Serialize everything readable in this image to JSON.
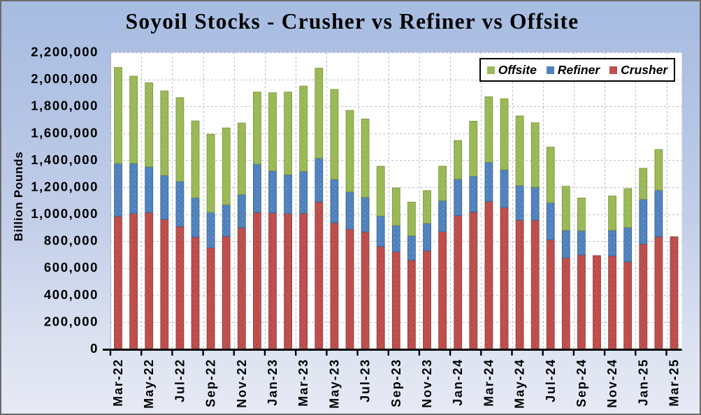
{
  "title": "Soyoil Stocks - Crusher vs Refiner vs Offsite",
  "y_axis_title": "Billion Pounds",
  "legend": {
    "position": "top-right-inside",
    "items": [
      {
        "label": "Offsite",
        "color": "#9bbb59"
      },
      {
        "label": "Refiner",
        "color": "#4f81bd"
      },
      {
        "label": "Crusher",
        "color": "#c0504d"
      }
    ]
  },
  "colors": {
    "offsite": "#9bbb59",
    "offsite_border": "#77933c",
    "refiner": "#4f81bd",
    "refiner_border": "#36608f",
    "crusher": "#c0504d",
    "crusher_border": "#903d3a",
    "background_top": "#a6bce1",
    "background_bottom": "#e7eaf5",
    "plot_background": "#ffffff",
    "gridline": "#b9bdcd",
    "x_axis_line": "#000000",
    "y_axis_line": "#aeb2c2",
    "outer_border": "#6b6b6b"
  },
  "chart_data": {
    "type": "bar",
    "stacked": true,
    "title": "Soyoil Stocks - Crusher vs Refiner vs Offsite",
    "xlabel": "",
    "ylabel": "Billion Pounds",
    "ylim": [
      0,
      2200000
    ],
    "y_tick_interval": 200000,
    "grid": "dashed",
    "legend_position": "top-right-inside",
    "y_tick_labels": [
      "0",
      "200,000",
      "400,000",
      "600,000",
      "800,000",
      "1,000,000",
      "1,200,000",
      "1,400,000",
      "1,600,000",
      "1,800,000",
      "2,000,000",
      "2,200,000"
    ],
    "x_tick_labels": [
      "Mar-22",
      "May-22",
      "Jul-22",
      "Sep-22",
      "Nov-22",
      "Jan-23",
      "Mar-23",
      "May-23",
      "Jul-23",
      "Sep-23",
      "Nov-23",
      "Jan-24",
      "Mar-24",
      "May-24",
      "Jul-24",
      "Sep-24",
      "Nov-24",
      "Jan-25",
      "Mar-25"
    ],
    "categories": [
      "Mar-22",
      "Apr-22",
      "May-22",
      "Jun-22",
      "Jul-22",
      "Aug-22",
      "Sep-22",
      "Oct-22",
      "Nov-22",
      "Dec-22",
      "Jan-23",
      "Feb-23",
      "Mar-23",
      "Apr-23",
      "May-23",
      "Jun-23",
      "Jul-23",
      "Aug-23",
      "Sep-23",
      "Oct-23",
      "Nov-23",
      "Dec-23",
      "Jan-24",
      "Feb-24",
      "Mar-24",
      "Apr-24",
      "May-24",
      "Jun-24",
      "Jul-24",
      "Aug-24",
      "Sep-24",
      "Oct-24",
      "Nov-24",
      "Dec-24",
      "Jan-25",
      "Feb-25",
      "Mar-25"
    ],
    "series": [
      {
        "name": "Crusher",
        "color": "#c0504d",
        "values": [
          984000,
          1005000,
          1012000,
          962000,
          909000,
          830000,
          750000,
          834000,
          900000,
          1013000,
          1009000,
          1004000,
          1006000,
          1092000,
          936000,
          888000,
          868000,
          760000,
          720000,
          659000,
          729000,
          870000,
          990000,
          1015000,
          1095000,
          1049000,
          956000,
          955000,
          810000,
          677000,
          698000,
          693000,
          691000,
          647000,
          779000,
          833000,
          833000
        ]
      },
      {
        "name": "Refiner",
        "color": "#4f81bd",
        "values": [
          392000,
          372000,
          339000,
          326000,
          334000,
          292000,
          263000,
          236000,
          246000,
          358000,
          313000,
          289000,
          311000,
          323000,
          323000,
          277000,
          257000,
          226000,
          195000,
          181000,
          204000,
          230000,
          271000,
          267000,
          290000,
          281000,
          257000,
          245000,
          275000,
          203000,
          180000,
          0,
          189000,
          255000,
          331000,
          345000,
          0
        ]
      },
      {
        "name": "Offsite",
        "color": "#9bbb59",
        "values": [
          712000,
          647000,
          623000,
          627000,
          621000,
          570000,
          580000,
          570000,
          530000,
          535000,
          579000,
          613000,
          633000,
          668000,
          667000,
          605000,
          581000,
          369000,
          280000,
          250000,
          242000,
          256000,
          286000,
          408000,
          486000,
          526000,
          516000,
          478000,
          412000,
          327000,
          242000,
          0,
          255000,
          288000,
          230000,
          302000,
          0
        ]
      }
    ]
  }
}
